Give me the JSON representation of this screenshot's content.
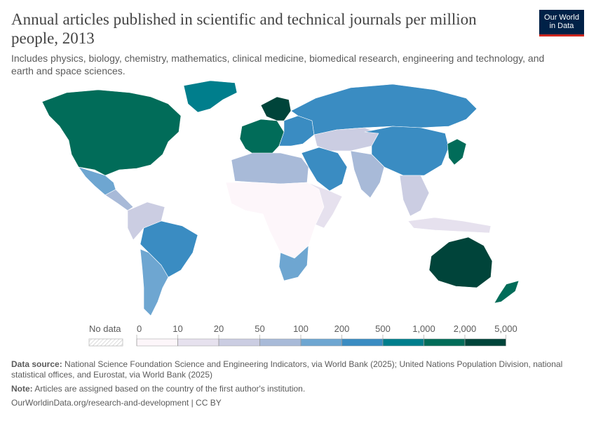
{
  "header": {
    "title": "Annual articles published in scientific and technical journals per million people, 2013",
    "subtitle": "Includes physics, biology, chemistry, mathematics, clinical medicine, biomedical research, engineering and technology, and earth and space sciences."
  },
  "logo": {
    "line1": "Our World",
    "line2": "in Data"
  },
  "legend": {
    "no_data_label": "No data",
    "ticks": [
      "0",
      "10",
      "20",
      "50",
      "100",
      "200",
      "500",
      "1,000",
      "2,000",
      "5,000"
    ],
    "colors": [
      "#fdf6fa",
      "#e6e1ee",
      "#cbcde2",
      "#a8bad8",
      "#6ea6d1",
      "#3a8cc2",
      "#007e8c",
      "#016c59",
      "#00443a"
    ]
  },
  "footer": {
    "source_label": "Data source:",
    "source_text": "National Science Foundation Science and Engineering Indicators, via World Bank (2025); United Nations Population Division, national statistical offices, and Eurostat, via World Bank (2025)",
    "note_label": "Note:",
    "note_text": "Articles are assigned based on the country of the first author's institution.",
    "url_text": "OurWorldinData.org/research-and-development | CC BY"
  },
  "map_regions": [
    {
      "name": "north-america",
      "color": "#016c59"
    },
    {
      "name": "greenland",
      "color": "#007e8c"
    },
    {
      "name": "mexico",
      "color": "#6ea6d1"
    },
    {
      "name": "central-america",
      "color": "#a8bad8"
    },
    {
      "name": "south-america-north",
      "color": "#cbcde2"
    },
    {
      "name": "brazil",
      "color": "#3a8cc2"
    },
    {
      "name": "argentina-chile",
      "color": "#6ea6d1"
    },
    {
      "name": "europe-west",
      "color": "#016c59"
    },
    {
      "name": "scandinavia",
      "color": "#00443a"
    },
    {
      "name": "eastern-europe",
      "color": "#3a8cc2"
    },
    {
      "name": "russia",
      "color": "#3a8cc2"
    },
    {
      "name": "central-asia",
      "color": "#cbcde2"
    },
    {
      "name": "china",
      "color": "#3a8cc2"
    },
    {
      "name": "japan-korea",
      "color": "#016c59"
    },
    {
      "name": "india",
      "color": "#a8bad8"
    },
    {
      "name": "middle-east",
      "color": "#3a8cc2"
    },
    {
      "name": "north-africa",
      "color": "#a8bad8"
    },
    {
      "name": "sub-saharan-africa",
      "color": "#fdf6fa"
    },
    {
      "name": "east-africa",
      "color": "#e6e1ee"
    },
    {
      "name": "southern-africa",
      "color": "#6ea6d1"
    },
    {
      "name": "southeast-asia",
      "color": "#cbcde2"
    },
    {
      "name": "indonesia",
      "color": "#e6e1ee"
    },
    {
      "name": "australia",
      "color": "#00443a"
    },
    {
      "name": "new-zealand",
      "color": "#016c59"
    }
  ]
}
